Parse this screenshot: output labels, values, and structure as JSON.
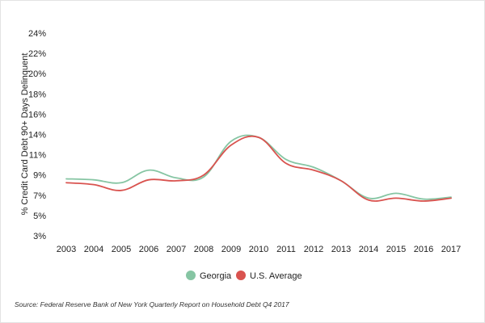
{
  "chart_data": {
    "type": "line",
    "title": "",
    "xlabel": "",
    "ylabel": "% Credit Card Debt 90+ Days Delinquent",
    "x": [
      "2003",
      "2004",
      "2005",
      "2006",
      "2007",
      "2008",
      "2009",
      "2010",
      "2011",
      "2012",
      "2013",
      "2014",
      "2015",
      "2016",
      "2017"
    ],
    "y_ticks": [
      "3%",
      "5%",
      "7%",
      "9%",
      "11%",
      "14%",
      "16%",
      "18%",
      "20%",
      "22%",
      "24%"
    ],
    "ylim": [
      3,
      24
    ],
    "grid": false,
    "legend_position": "bottom",
    "series": [
      {
        "name": "Georgia",
        "color": "#86c5a3",
        "values": [
          8.9,
          8.8,
          8.5,
          9.8,
          9.0,
          9.1,
          12.8,
          13.2,
          10.9,
          10.1,
          8.7,
          6.9,
          7.4,
          6.8,
          7.0
        ]
      },
      {
        "name": "U.S. Average",
        "color": "#d9534f",
        "values": [
          8.5,
          8.3,
          7.7,
          8.8,
          8.7,
          9.3,
          12.4,
          13.2,
          10.5,
          9.8,
          8.7,
          6.7,
          6.9,
          6.6,
          6.9
        ]
      }
    ]
  },
  "source_text": "Source: Federal Reserve Bank of New York Quarterly Report on Household Debt Q4 2017"
}
